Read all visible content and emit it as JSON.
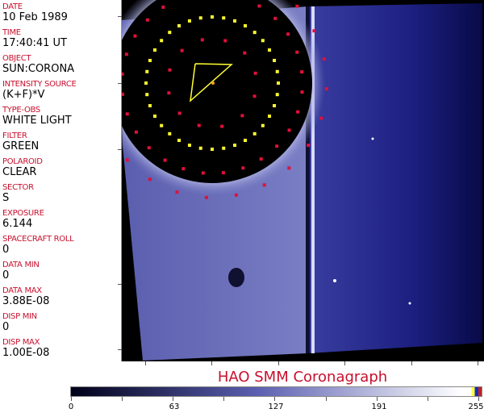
{
  "fields": [
    {
      "label": "DATE",
      "value": "10 Feb 1989"
    },
    {
      "label": "TIME",
      "value": "17:40:41 UT"
    },
    {
      "label": "OBJECT",
      "value": "SUN:CORONA"
    },
    {
      "label": "INTENSITY SOURCE",
      "value": "(K+F)*V"
    },
    {
      "label": "TYPE-OBS",
      "value": "WHITE LIGHT"
    },
    {
      "label": "FILTER",
      "value": "GREEN"
    },
    {
      "label": "POLAROID",
      "value": "CLEAR"
    },
    {
      "label": "SECTOR",
      "value": "S"
    },
    {
      "label": "EXPOSURE",
      "value": "6.144"
    },
    {
      "label": "SPACECRAFT ROLL",
      "value": "0"
    },
    {
      "label": "DATA MIN",
      "value": "0"
    },
    {
      "label": "DATA MAX",
      "value": "3.88E-08"
    },
    {
      "label": "DISP MIN",
      "value": "0"
    },
    {
      "label": "DISP MAX",
      "value": "1.00E-08"
    }
  ],
  "title": "HAO  SMM Coronagraph",
  "colorbar": {
    "ticks": [
      "0",
      "63",
      "127",
      "191",
      "255"
    ],
    "min": 0,
    "max": 255,
    "colors": {
      "low": "#000018",
      "mid": "#5a5fb0",
      "high": "#ffffff",
      "marker1": "#ffff40",
      "marker2": "#1030c0",
      "marker3": "#c02020"
    }
  },
  "colors": {
    "label": "#c8102e",
    "grid_yellow": "#ffff30",
    "grid_red": "#e0103a"
  }
}
